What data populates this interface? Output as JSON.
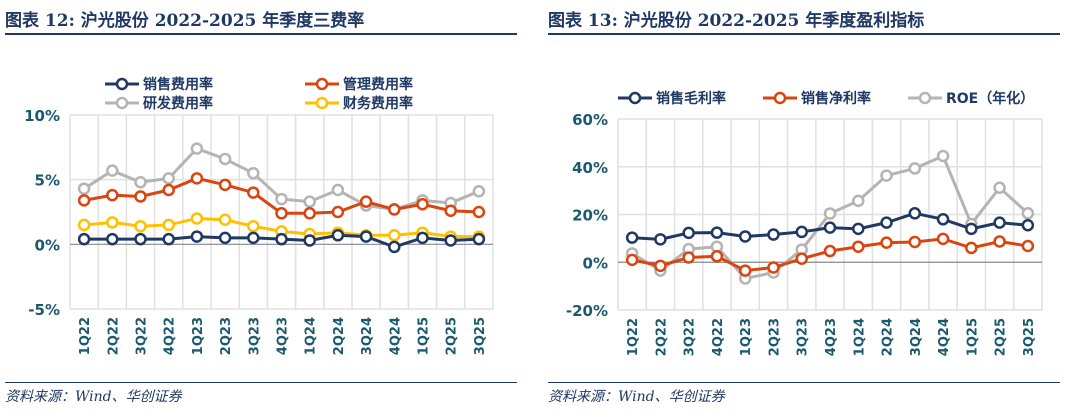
{
  "chart_data": [
    {
      "type": "line",
      "title": "图表 12: 沪光股份 2022-2025 年季度三费率",
      "source": "资料来源：Wind、华创证券",
      "categories": [
        "1Q22",
        "2Q22",
        "3Q22",
        "4Q22",
        "1Q23",
        "2Q23",
        "3Q23",
        "4Q23",
        "1Q24",
        "2Q24",
        "3Q24",
        "4Q24",
        "1Q25",
        "2Q25",
        "3Q25"
      ],
      "ylim": [
        -5,
        10
      ],
      "yticks": [
        -5,
        0,
        5,
        10
      ],
      "tick_labels": [
        "-5%",
        "0%",
        "5%",
        "10%"
      ],
      "legend": "top",
      "series": [
        {
          "name": "销售费用率",
          "color": "#1f3864",
          "values": [
            0.4,
            0.4,
            0.4,
            0.4,
            0.6,
            0.5,
            0.5,
            0.4,
            0.3,
            0.7,
            0.6,
            -0.2,
            0.5,
            0.3,
            0.4
          ]
        },
        {
          "name": "管理费用率",
          "color": "#d9440f",
          "values": [
            3.4,
            3.8,
            3.7,
            4.2,
            5.1,
            4.6,
            4.0,
            2.4,
            2.4,
            2.5,
            3.3,
            2.7,
            3.1,
            2.6,
            2.5
          ]
        },
        {
          "name": "研发费用率",
          "color": "#b4b4b4",
          "values": [
            4.3,
            5.7,
            4.8,
            5.1,
            7.4,
            6.6,
            5.5,
            3.5,
            3.3,
            4.2,
            3.0,
            2.7,
            3.4,
            3.2,
            4.1
          ]
        },
        {
          "name": "财务费用率",
          "color": "#ffc000",
          "values": [
            1.5,
            1.7,
            1.4,
            1.5,
            2.0,
            1.9,
            1.4,
            1.0,
            0.8,
            0.9,
            0.7,
            0.7,
            0.9,
            0.6,
            0.6
          ]
        }
      ]
    },
    {
      "type": "line",
      "title": "图表 13: 沪光股份 2022-2025 年季度盈利指标",
      "source": "资料来源：Wind、华创证券",
      "categories": [
        "1Q22",
        "2Q22",
        "3Q22",
        "4Q22",
        "1Q23",
        "2Q23",
        "3Q23",
        "4Q23",
        "1Q24",
        "2Q24",
        "3Q24",
        "4Q24",
        "1Q25",
        "2Q25",
        "3Q25"
      ],
      "ylim": [
        -20,
        60
      ],
      "yticks": [
        -20,
        0,
        20,
        40,
        60
      ],
      "tick_labels": [
        "-20%",
        "0%",
        "20%",
        "40%",
        "60%"
      ],
      "legend": "top",
      "series": [
        {
          "name": "销售毛利率",
          "color": "#1f3864",
          "values": [
            10.3,
            9.6,
            12.3,
            12.4,
            10.8,
            11.6,
            12.7,
            14.5,
            14.0,
            16.6,
            20.5,
            18.0,
            14.0,
            16.6,
            15.5
          ]
        },
        {
          "name": "销售净利率",
          "color": "#d9440f",
          "values": [
            1.0,
            -1.5,
            2.0,
            2.5,
            -3.5,
            -2.2,
            1.5,
            4.7,
            6.5,
            8.2,
            8.5,
            9.8,
            6.0,
            8.7,
            6.8
          ]
        },
        {
          "name": "ROE（年化）",
          "color": "#b4b4b4",
          "values": [
            3.7,
            -3.5,
            5.5,
            6.5,
            -6.8,
            -4.3,
            5.3,
            20.4,
            25.7,
            36.3,
            39.3,
            44.5,
            16.0,
            31.2,
            20.5
          ]
        }
      ]
    }
  ]
}
